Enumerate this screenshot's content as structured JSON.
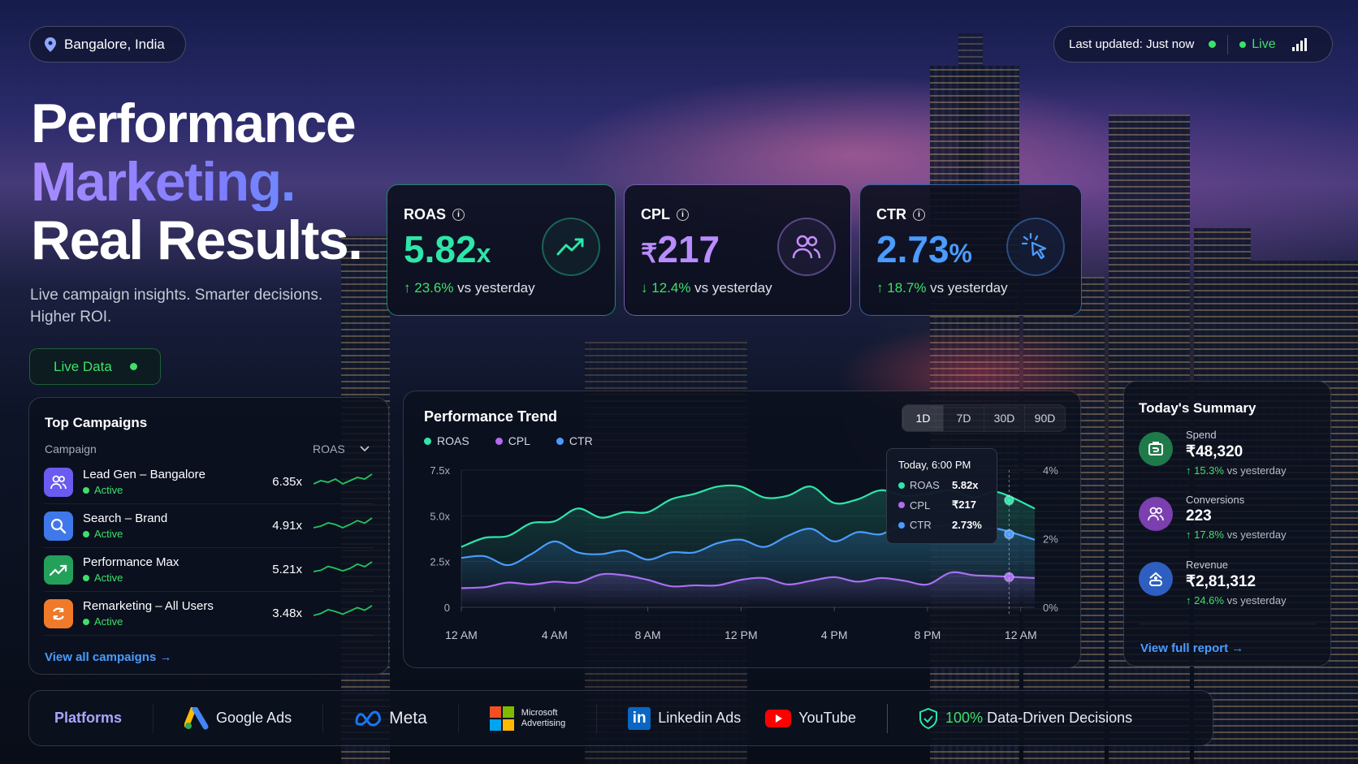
{
  "location": {
    "icon": "map-pin-icon",
    "label": "Bangalore, India"
  },
  "status": {
    "last_updated": "Last updated: Just now",
    "live": "Live",
    "icon": "signal-bars-icon"
  },
  "hero": {
    "line1": "Performance",
    "line2": "Marketing.",
    "line3": "Real Results.",
    "subtitle_1": "Live campaign insights. Smarter decisions.",
    "subtitle_2": "Higher ROI.",
    "live_button": "Live Data"
  },
  "kpis": [
    {
      "label": "ROAS",
      "value": "5.82",
      "unit": "x",
      "change": "23.6%",
      "direction": "up",
      "suffix": "vs yesterday",
      "icon": "trend-up-icon",
      "color": "#2ee6a8"
    },
    {
      "label": "CPL",
      "value": "217",
      "unit_prefix": "₹",
      "change": "12.4%",
      "direction": "down",
      "suffix": "vs yesterday",
      "icon": "users-icon",
      "color": "#b98cff"
    },
    {
      "label": "CTR",
      "value": "2.73",
      "unit": "%",
      "change": "18.7%",
      "direction": "up",
      "suffix": "vs yesterday",
      "icon": "cursor-click-icon",
      "color": "#4a9cff"
    }
  ],
  "campaigns": {
    "title": "Top Campaigns",
    "col_campaign": "Campaign",
    "col_metric": "ROAS",
    "rows": [
      {
        "name": "Lead Gen – Bangalore",
        "status": "Active",
        "roas": "6.35x",
        "icon": "users-icon",
        "color": "#6a5cf0",
        "spark": [
          2,
          3,
          2.5,
          3.5,
          2,
          3,
          4,
          3.5,
          5
        ]
      },
      {
        "name": "Search – Brand",
        "status": "Active",
        "roas": "4.91x",
        "icon": "search-icon",
        "color": "#3f78e8",
        "spark": [
          2,
          2.5,
          3.5,
          3,
          2,
          3,
          4.2,
          3.4,
          5
        ]
      },
      {
        "name": "Performance Max",
        "status": "Active",
        "roas": "5.21x",
        "icon": "trend-up-icon",
        "color": "#23a05a",
        "spark": [
          2,
          2.4,
          3.6,
          3,
          2.2,
          3,
          4.3,
          3.5,
          5
        ]
      },
      {
        "name": "Remarketing – All Users",
        "status": "Active",
        "roas": "3.48x",
        "icon": "refresh-icon",
        "color": "#f07a2a",
        "spark": [
          2,
          2.6,
          3.8,
          3.2,
          2.4,
          3.4,
          4.4,
          3.6,
          5
        ]
      }
    ],
    "view_all": "View all campaigns →"
  },
  "chart_data": {
    "type": "line",
    "title": "Performance Trend",
    "timeframes": [
      "1D",
      "7D",
      "30D",
      "90D"
    ],
    "selected_timeframe": "1D",
    "x_hours": [
      0,
      1,
      2,
      3,
      4,
      5,
      6,
      7,
      8,
      9,
      10,
      11,
      12,
      13,
      14,
      15,
      16,
      17,
      18,
      19,
      20,
      21,
      22,
      23,
      24
    ],
    "x_ticks": [
      "12 AM",
      "4 AM",
      "8 AM",
      "12 PM",
      "4 PM",
      "8 PM",
      "12 AM"
    ],
    "y_left_ticks": [
      "0",
      "2.5x",
      "5.0x",
      "7.5x"
    ],
    "y_left_range": [
      0,
      7.5
    ],
    "y_right_ticks": [
      "0%",
      "2%",
      "4%"
    ],
    "y_right_range": [
      0,
      4
    ],
    "grid": true,
    "legend_position": "top-left",
    "series": [
      {
        "name": "ROAS",
        "axis": "left",
        "color": "#2ee6a8",
        "values": [
          3.3,
          3.8,
          3.9,
          4.6,
          4.7,
          5.4,
          4.9,
          5.2,
          5.2,
          5.9,
          6.2,
          6.6,
          6.6,
          6.0,
          6.1,
          6.6,
          5.7,
          5.9,
          6.4,
          6.1,
          6.2,
          6.4,
          6.0,
          6.3,
          5.4
        ]
      },
      {
        "name": "CPL",
        "axis": "left",
        "color": "#b26cf0",
        "values": [
          1.05,
          1.1,
          1.35,
          1.25,
          1.4,
          1.35,
          1.8,
          1.75,
          1.5,
          1.15,
          1.2,
          1.2,
          1.5,
          1.6,
          1.25,
          1.45,
          1.65,
          1.4,
          1.6,
          1.45,
          1.25,
          1.9,
          1.75,
          1.7,
          1.6
        ]
      },
      {
        "name": "CTR",
        "axis": "right",
        "color": "#4a9cff",
        "values": [
          1.44,
          1.49,
          1.23,
          1.55,
          1.92,
          1.6,
          1.55,
          1.65,
          1.39,
          1.6,
          1.6,
          1.87,
          1.97,
          1.76,
          2.08,
          2.29,
          1.92,
          2.19,
          2.13,
          2.45,
          2.35,
          2.4,
          2.29,
          2.29,
          1.97
        ]
      }
    ],
    "tooltip": {
      "title": "Today, 6:00 PM",
      "x_hour": 23.5,
      "rows": [
        {
          "name": "ROAS",
          "value": "5.82x",
          "color": "#2ee6a8"
        },
        {
          "name": "CPL",
          "value": "₹217",
          "color": "#b26cf0"
        },
        {
          "name": "CTR",
          "value": "2.73%",
          "color": "#4a9cff"
        }
      ]
    }
  },
  "summary": {
    "title": "Today's Summary",
    "items": [
      {
        "label": "Spend",
        "value": "₹48,320",
        "change": "↑ 15.3%",
        "suffix": "vs yesterday",
        "icon": "wallet-icon",
        "color": "#1f7a4a"
      },
      {
        "label": "Conversions",
        "value": "223",
        "change": "↑ 17.8%",
        "suffix": "vs yesterday",
        "icon": "users-icon",
        "color": "#7b3fb0"
      },
      {
        "label": "Revenue",
        "value": "₹2,81,312",
        "change": "↑ 24.6%",
        "suffix": "vs yesterday",
        "icon": "revenue-icon",
        "color": "#2e5fc0"
      }
    ],
    "link": "View full report →"
  },
  "platforms": {
    "label": "Platforms",
    "items": [
      {
        "name": "Google Ads",
        "icon": "google-ads-icon"
      },
      {
        "name": "Meta",
        "icon": "meta-icon"
      },
      {
        "name": "Microsoft Advertising",
        "line1": "Microsoft",
        "line2": "Advertising",
        "icon": "microsoft-icon"
      },
      {
        "name": "Linkedin Ads",
        "icon": "linkedin-icon"
      },
      {
        "name": "YouTube",
        "icon": "youtube-icon"
      }
    ],
    "badge_pct": "100%",
    "badge_text": "Data-Driven Decisions"
  }
}
